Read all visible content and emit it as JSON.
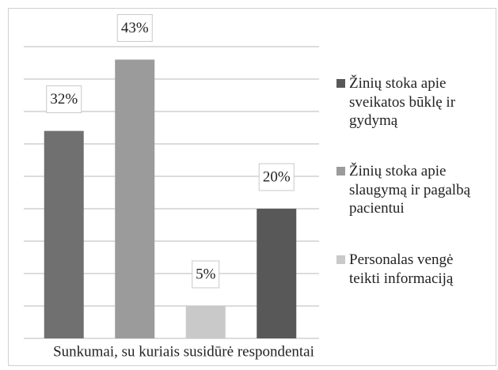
{
  "chart_data": {
    "type": "bar",
    "x_label": "Sunkumai, su kuriais susidūrė respondentai",
    "categories": [
      null,
      null,
      null,
      null
    ],
    "values": [
      32,
      43,
      5,
      20
    ],
    "value_labels": [
      "32%",
      "43%",
      "5%",
      "20%"
    ],
    "colors": [
      "#707070",
      "#9b9b9b",
      "#c9c9c9",
      "#585858"
    ],
    "legend": [
      {
        "name": "Žinių stoka apie sveikatos būklę ir gydymą",
        "color": "#585858"
      },
      {
        "name": "Žinių stoka apie slaugymą ir pagalbą pacientui",
        "color": "#9b9b9b"
      },
      {
        "name": "Personalas vengė teikti informaciją",
        "color": "#c9c9c9"
      }
    ],
    "ylim": [
      0,
      45
    ],
    "yticks": [
      0,
      5,
      10,
      15,
      20,
      25,
      30,
      35,
      40,
      45
    ],
    "grid": true
  }
}
